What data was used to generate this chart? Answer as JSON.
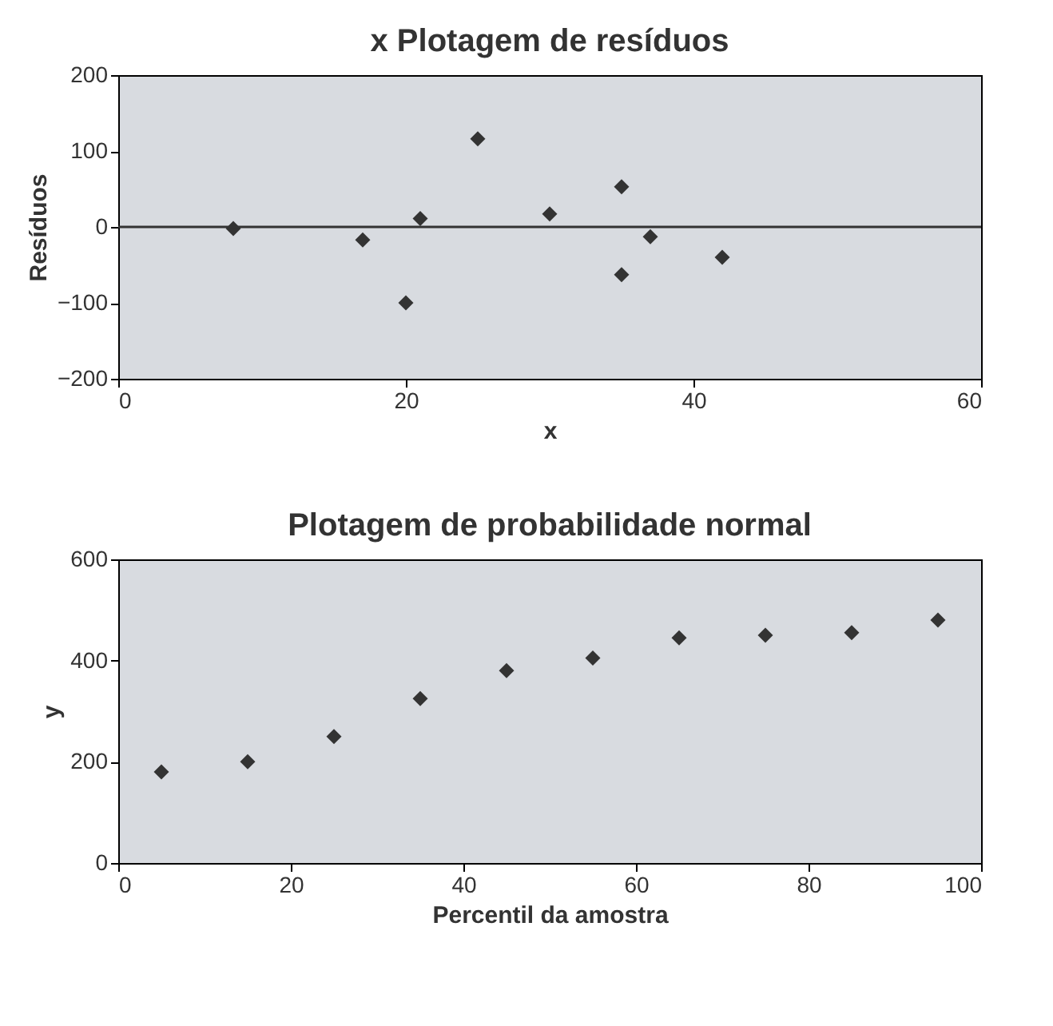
{
  "chart_data": [
    {
      "type": "scatter",
      "title": "x Plotagem de resíduos",
      "xlabel": "x",
      "ylabel": "Resíduos",
      "x": [
        8,
        17,
        21,
        20,
        25,
        30,
        35,
        35,
        37,
        42
      ],
      "series": [
        {
          "color": "#333333",
          "values": [
            -2,
            -17,
            11,
            -100,
            116,
            17,
            53,
            -63,
            -13,
            -40
          ]
        }
      ],
      "xlim": [
        0,
        60
      ],
      "xticks": [
        0,
        20,
        40,
        60
      ],
      "ylim": [
        -200,
        200
      ],
      "yticks": [
        -200,
        -100,
        0,
        100,
        200
      ],
      "marker": "diamond",
      "grid": false,
      "ref_lines": [
        {
          "axis": "y",
          "value": 0,
          "color": "#333333"
        }
      ]
    },
    {
      "type": "scatter",
      "title": "Plotagem de probabilidade normal",
      "xlabel": "Percentil da amostra",
      "ylabel": "y",
      "x": [
        5,
        15,
        25,
        35,
        45,
        55,
        65,
        75,
        85,
        95
      ],
      "series": [
        {
          "color": "#333333",
          "values": [
            180,
            200,
            250,
            325,
            380,
            405,
            445,
            450,
            455,
            480
          ]
        }
      ],
      "xlim": [
        0,
        100
      ],
      "xticks": [
        0,
        20,
        40,
        60,
        80,
        100
      ],
      "ylim": [
        0,
        600
      ],
      "yticks": [
        0,
        200,
        400,
        600
      ],
      "marker": "diamond",
      "grid": false
    }
  ]
}
